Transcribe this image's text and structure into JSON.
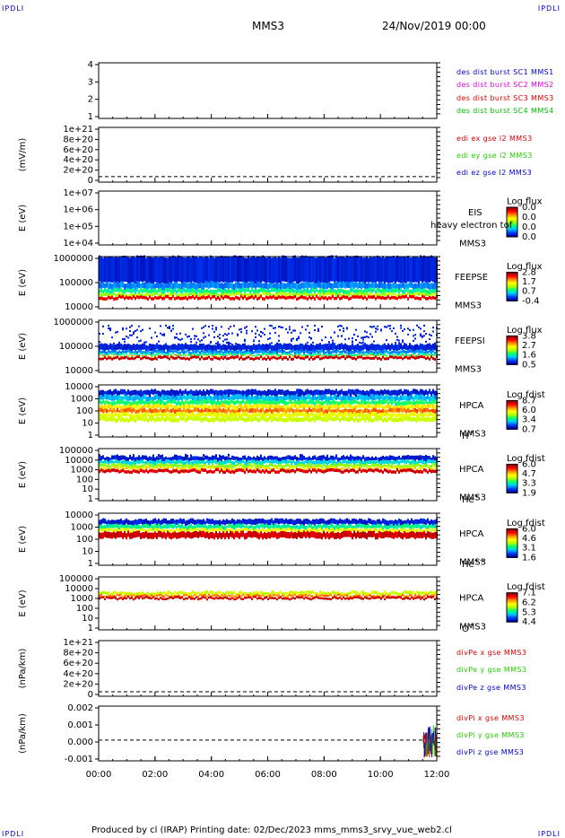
{
  "corner_tl": "IPDLI",
  "corner_tr": "IPDLI",
  "corner_bl": "IPDLI",
  "corner_br": "IPDLI",
  "header": {
    "spacecraft": "MMS3",
    "datetime": "24/Nov/2019 00:00"
  },
  "footer": "Produced by cl (IRAP)   Printing date: 02/Dec/2023   mms_mms3_srvy_vue_web2.cl",
  "colors": {
    "red": "#d40000",
    "green": "#22cc00",
    "blue": "#0000cc",
    "magenta": "#dd00dd",
    "darkgreen": "#00bb00"
  },
  "chart_data": {
    "type": "multi-panel",
    "time_axis": {
      "ticks": [
        "00:00",
        "02:00",
        "04:00",
        "06:00",
        "08:00",
        "10:00",
        "12:00"
      ],
      "range_hours": [
        0,
        12
      ]
    },
    "panels": [
      {
        "id": "p1",
        "type": "line",
        "ylabel": "",
        "yticks": [
          "4",
          "3",
          "2",
          "1"
        ],
        "legend": [
          {
            "text": "des dist burst SC1 MMS1",
            "color": "#0000cc"
          },
          {
            "text": "des dist burst SC2 MMS2",
            "color": "#dd00dd"
          },
          {
            "text": "des dist burst SC3 MMS3",
            "color": "#d40000"
          },
          {
            "text": "des dist burst SC4 MMS4",
            "color": "#00bb00"
          }
        ]
      },
      {
        "id": "p2",
        "type": "line",
        "ylabel": "(mV/m)",
        "yticks": [
          "1e+21",
          "8e+20",
          "6e+20",
          "4e+20",
          "2e+20",
          "0"
        ],
        "legend": [
          {
            "text": "edi ex gse l2 MMS3",
            "color": "#d40000"
          },
          {
            "text": "edi ey gse l2 MMS3",
            "color": "#22cc00"
          },
          {
            "text": "edi ez gse l2 MMS3",
            "color": "#0000cc"
          }
        ]
      },
      {
        "id": "p3",
        "type": "heatmap",
        "ylabel": "E (eV)",
        "yticks": [
          "1e+07",
          "1e+06",
          "1e+05",
          "1e+04"
        ],
        "name1": "EIS",
        "overlay": "heavy electron tof",
        "name2": "MMS3",
        "species": "",
        "cb_title": "Log flux",
        "cb_ticks": [
          "0.0",
          "0.0",
          "0.0",
          "0.0"
        ]
      },
      {
        "id": "p4",
        "type": "heatmap",
        "ylabel": "E (eV)",
        "yticks": [
          "1000000",
          "100000",
          "10000"
        ],
        "name1": "FEEPSE",
        "name2": "MMS3",
        "species": "",
        "cb_title": "Log flux",
        "cb_ticks": [
          "2.8",
          "1.7",
          "0.7",
          "-0.4"
        ]
      },
      {
        "id": "p5",
        "type": "heatmap",
        "ylabel": "E (eV)",
        "yticks": [
          "1000000",
          "100000",
          "10000"
        ],
        "name1": "FEEPSI",
        "name2": "MMS3",
        "species": "",
        "cb_title": "Log flux",
        "cb_ticks": [
          "3.8",
          "2.7",
          "1.6",
          "0.5"
        ]
      },
      {
        "id": "p6",
        "type": "heatmap",
        "ylabel": "E (eV)",
        "yticks": [
          "10000",
          "1000",
          "100",
          "10",
          "1"
        ],
        "name1": "HPCA",
        "name2": "MMS3",
        "species": "H",
        "species_sup": "+",
        "cb_title": "Log fdist",
        "cb_ticks": [
          "8.7",
          "6.0",
          "3.4",
          "0.7"
        ]
      },
      {
        "id": "p7",
        "type": "heatmap",
        "ylabel": "E (eV)",
        "yticks": [
          "100000",
          "10000",
          "1000",
          "100",
          "10",
          "1"
        ],
        "name1": "HPCA",
        "name2": "MMS3",
        "species": "He",
        "species_sup": "+",
        "cb_title": "Log fdist",
        "cb_ticks": [
          "6.0",
          "4.7",
          "3.3",
          "1.9"
        ]
      },
      {
        "id": "p8",
        "type": "heatmap",
        "ylabel": "E (eV)",
        "yticks": [
          "10000",
          "1000",
          "100",
          "10",
          "1"
        ],
        "name1": "HPCA",
        "name2": "MMS3",
        "species": "He",
        "species_sup": "++",
        "cb_title": "Log fdist",
        "cb_ticks": [
          "6.0",
          "4.6",
          "3.1",
          "1.6"
        ]
      },
      {
        "id": "p9",
        "type": "heatmap",
        "ylabel": "E (eV)",
        "yticks": [
          "100000",
          "10000",
          "1000",
          "100",
          "10",
          "1"
        ],
        "name1": "HPCA",
        "name2": "MMS3",
        "species": "O",
        "species_sup": "+",
        "cb_title": "Log fdist",
        "cb_ticks": [
          "7.1",
          "6.2",
          "5.3",
          "4.4"
        ]
      },
      {
        "id": "p10",
        "type": "line",
        "ylabel": "(nPa/km)",
        "yticks": [
          "1e+21",
          "8e+20",
          "6e+20",
          "4e+20",
          "2e+20",
          "0"
        ],
        "legend": [
          {
            "text": "divPe x gse MMS3",
            "color": "#d40000"
          },
          {
            "text": "divPe y gse MMS3",
            "color": "#22cc00"
          },
          {
            "text": "divPe z gse MMS3",
            "color": "#0000cc"
          }
        ]
      },
      {
        "id": "p11",
        "type": "line",
        "ylabel": "(nPa/km)",
        "yticks": [
          "0.002",
          "0.001",
          "0.000",
          "-0.001"
        ],
        "legend": [
          {
            "text": "divPi x gse MMS3",
            "color": "#d40000"
          },
          {
            "text": "divPi y gse MMS3",
            "color": "#22cc00"
          },
          {
            "text": "divPi z gse MMS3",
            "color": "#0000cc"
          }
        ]
      }
    ]
  }
}
